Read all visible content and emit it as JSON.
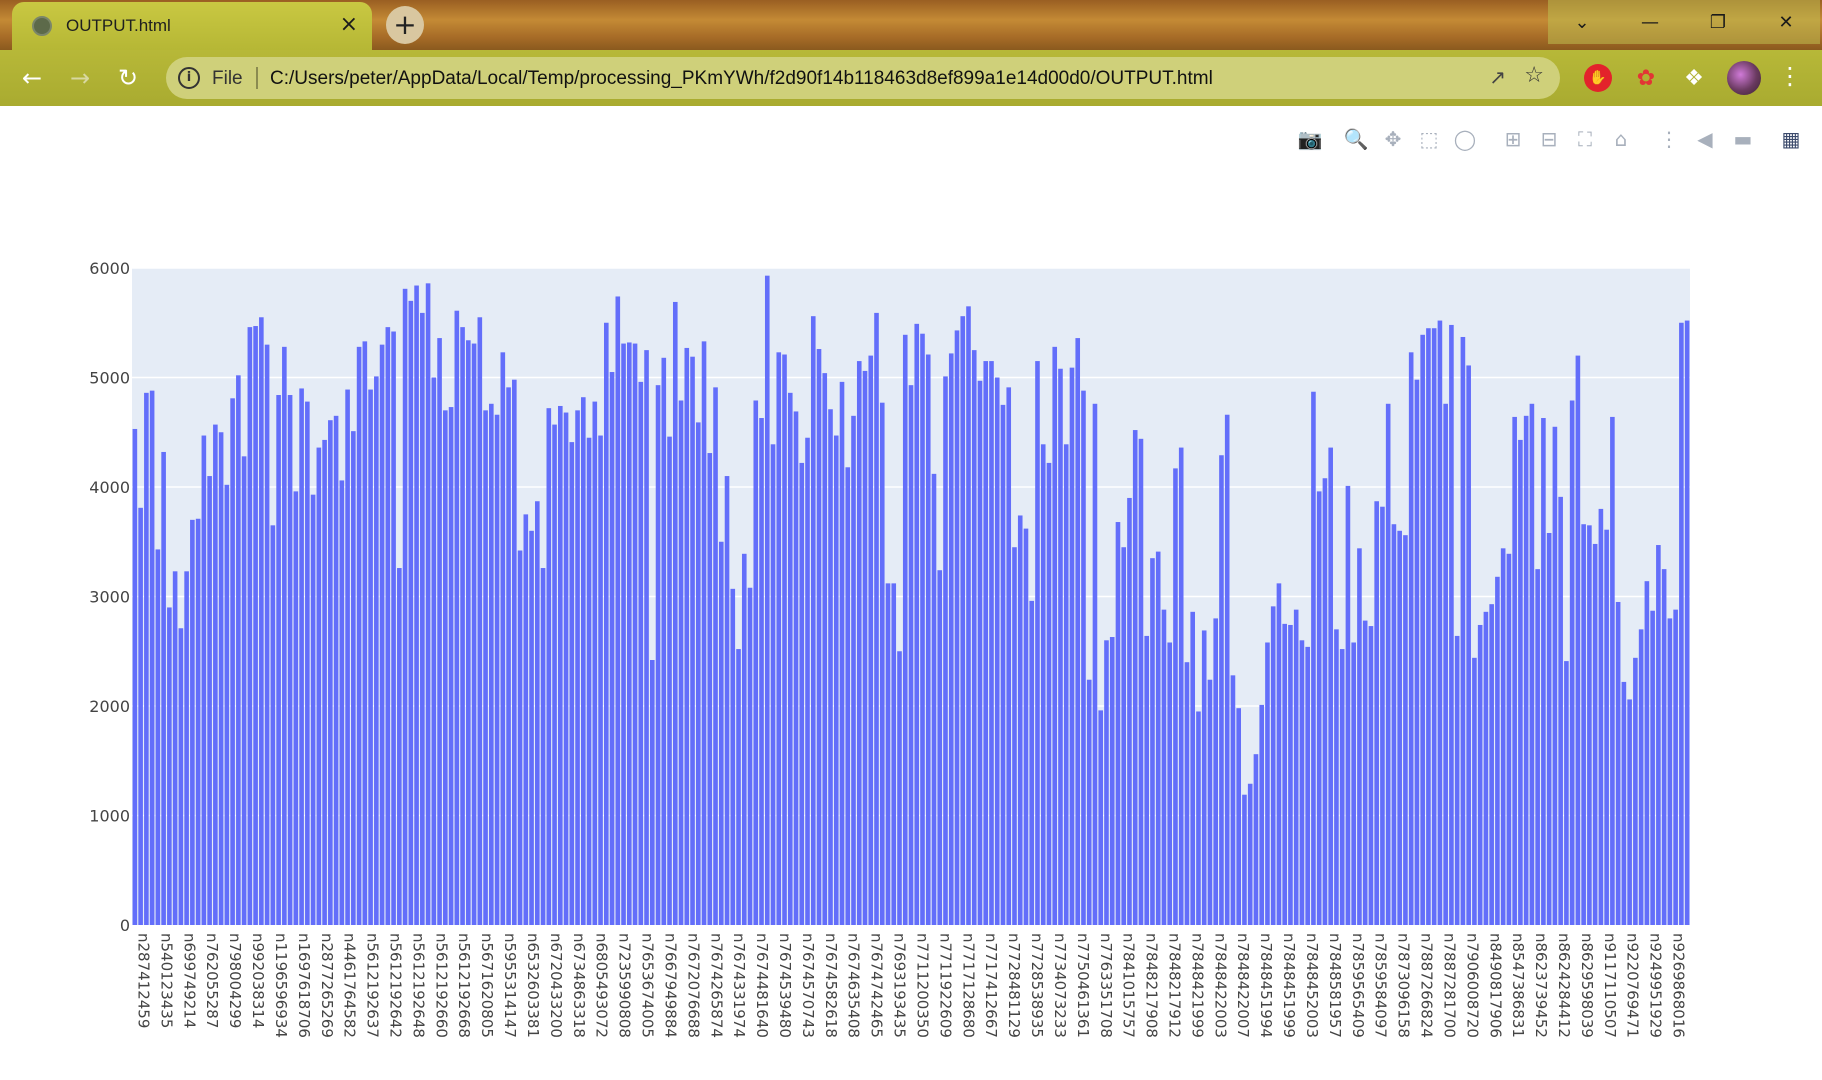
{
  "browser": {
    "tab_title": "OUTPUT.html",
    "tab_close": "×",
    "new_tab": "+",
    "file_label": "File",
    "url": "C:/Users/peter/AppData/Local/Temp/processing_PKmYWh/f2d90f14b118463d8ef899a1e14d00d0/OUTPUT.html",
    "accent_color": "#b7b838"
  },
  "modebar": {
    "buttons": [
      "camera-icon",
      "zoom-icon",
      "pan-icon",
      "box-select-icon",
      "lasso-icon",
      "zoom-in-icon",
      "zoom-out-icon",
      "autoscale-icon",
      "reset-axes-icon",
      "spike-lines-icon",
      "hover-closest-icon",
      "hover-compare-icon",
      "plotly-logo-icon"
    ]
  },
  "chart_data": {
    "type": "bar",
    "bar_color": "#636efa",
    "plot_background": "#e5ecf6",
    "grid": true,
    "ylim": [
      0,
      6000
    ],
    "yticks": [
      0,
      1000,
      2000,
      3000,
      4000,
      5000,
      6000
    ],
    "xtick_labels": [
      "n287412459",
      "n540123435",
      "n699749214",
      "n762055287",
      "n798004299",
      "n992038314",
      "n1196596934",
      "n1697618706",
      "n2877265269",
      "n4461764582",
      "n5612192637",
      "n5612192642",
      "n5612192648",
      "n5612192660",
      "n5612192668",
      "n5671620805",
      "n5955314147",
      "n6532603381",
      "n6720433200",
      "n6734863318",
      "n6805493072",
      "n7235990808",
      "n7653674005",
      "n7667949884",
      "n7672076688",
      "n7674265874",
      "n7674331974",
      "n7674481640",
      "n7674539480",
      "n7674570743",
      "n7674582618",
      "n7674635408",
      "n7674742465",
      "n7693193435",
      "n7711200350",
      "n7711922609",
      "n7717128680",
      "n7717412667",
      "n7728481129",
      "n7728538935",
      "n7734073233",
      "n7750461361",
      "n7763351708",
      "n7841015757",
      "n7848217908",
      "n7848217912",
      "n7848421999",
      "n7848422003",
      "n7848422007",
      "n7848451994",
      "n7848451999",
      "n7848452003",
      "n7848581957",
      "n7859565409",
      "n7859584097",
      "n7873096158",
      "n7887266824",
      "n7887281700",
      "n7906008720",
      "n8490817906",
      "n8547386831",
      "n8623739452",
      "n8624284412",
      "n8629598039",
      "n9117110507",
      "n9220769471",
      "n9249951929",
      "n9269868016"
    ],
    "values": [
      4530,
      3810,
      4860,
      4880,
      3430,
      4320,
      2900,
      3230,
      2710,
      3230,
      3700,
      3710,
      4470,
      4100,
      4570,
      4500,
      4020,
      4810,
      5020,
      4280,
      5460,
      5470,
      5550,
      5300,
      3650,
      4840,
      5280,
      4840,
      3960,
      4900,
      4780,
      3930,
      4360,
      4430,
      4610,
      4650,
      4060,
      4890,
      4510,
      5280,
      5330,
      4890,
      5010,
      5300,
      5460,
      5420,
      3260,
      5810,
      5700,
      5840,
      5590,
      5860,
      5000,
      5360,
      4700,
      4730,
      5610,
      5460,
      5340,
      5310,
      5550,
      4700,
      4760,
      4660,
      5230,
      4910,
      4980,
      3420,
      3750,
      3600,
      3870,
      3260,
      4720,
      4570,
      4740,
      4680,
      4410,
      4700,
      4820,
      4450,
      4780,
      4470,
      5500,
      5050,
      5740,
      5310,
      5320,
      5310,
      4960,
      5250,
      2420,
      4930,
      5180,
      4460,
      5690,
      4790,
      5270,
      5190,
      4590,
      5330,
      4310,
      4910,
      3500,
      4100,
      3070,
      2520,
      3390,
      3080,
      4790,
      4630,
      5930,
      4390,
      5230,
      5210,
      4860,
      4690,
      4220,
      4450,
      5560,
      5260,
      5040,
      4710,
      4470,
      4960,
      4180,
      4650,
      5150,
      5060,
      5200,
      5590,
      4770,
      3120,
      3120,
      2500,
      5390,
      4930,
      5490,
      5400,
      5210,
      4120,
      3240,
      5010,
      5220,
      5430,
      5560,
      5650,
      5250,
      4970,
      5150,
      5150,
      5000,
      4750,
      4910,
      3450,
      3740,
      3620,
      2960,
      5150,
      4390,
      4220,
      5280,
      5080,
      4390,
      5090,
      5360,
      4880,
      2240,
      4760,
      1960,
      2600,
      2630,
      3680,
      3450,
      3900,
      4520,
      4440,
      2640,
      3350,
      3410,
      2880,
      2580,
      4170,
      4360,
      2400,
      2860,
      1950,
      2690,
      2240,
      2800,
      4290,
      4660,
      2280,
      1980,
      1190,
      1290,
      1560,
      2010,
      2580,
      2910,
      3120,
      2750,
      2740,
      2880,
      2600,
      2540,
      4870,
      3960,
      4080,
      4360,
      2700,
      2520,
      4010,
      2580,
      3440,
      2780,
      2730,
      3870,
      3820,
      4760,
      3660,
      3600,
      3560,
      5230,
      4980,
      5390,
      5450,
      5450,
      5520,
      4760,
      5480,
      2640,
      5370,
      5110,
      2440,
      2740,
      2860,
      2930,
      3180,
      3440,
      3390,
      4640,
      4430,
      4650,
      4760,
      3250,
      4630,
      3580,
      4550,
      3910,
      2410,
      4790,
      5200,
      3660,
      3650,
      3480,
      3800,
      3610,
      4640,
      2950,
      2220,
      2060,
      2440,
      2700,
      3140,
      2870,
      3470,
      3250,
      2800,
      2880,
      5500,
      5520
    ]
  }
}
